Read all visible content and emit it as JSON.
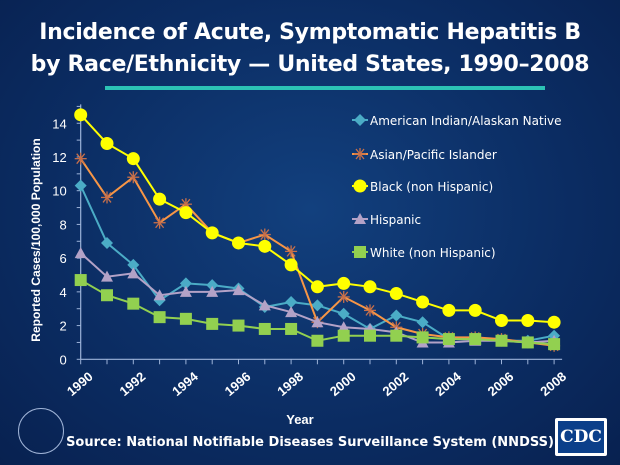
{
  "title_line1": "Incidence of Acute, Symptomatic Hepatitis B",
  "title_line2": "by Race/Ethnicity — United States, 1990–2008",
  "source": "Source: National Notifiable Diseases Surveillance System (NNDSS)",
  "logo_text": "CDC",
  "chart_data": {
    "type": "line",
    "title": "",
    "xlabel": "Year",
    "ylabel": "Reported Cases/100,000 Population",
    "x": [
      1990,
      1991,
      1992,
      1993,
      1994,
      1995,
      1996,
      1997,
      1998,
      1999,
      2000,
      2001,
      2002,
      2003,
      2004,
      2005,
      2006,
      2007,
      2008
    ],
    "xtick_labels": [
      "1990",
      "1992",
      "1994",
      "1996",
      "1998",
      "2000",
      "2002",
      "2004",
      "2006",
      "2008"
    ],
    "ytick_labels": [
      "0",
      "2",
      "4",
      "6",
      "8",
      "10",
      "12",
      "14"
    ],
    "ylim": [
      0,
      15
    ],
    "grid": false,
    "legend": "top-right",
    "series": [
      {
        "name": "American Indian/Alaskan Native",
        "color": "#4bacc6",
        "marker": "diamond",
        "values": [
          10.3,
          6.9,
          5.6,
          3.5,
          4.5,
          4.4,
          4.2,
          3.1,
          3.4,
          3.2,
          2.7,
          1.8,
          2.6,
          2.2,
          1.2,
          1.2,
          1.1,
          1.1,
          1.4
        ]
      },
      {
        "name": "Asian/Pacific Islander",
        "color": "#f79646",
        "marker": "asterisk",
        "values": [
          11.9,
          9.6,
          10.8,
          8.1,
          9.2,
          7.5,
          6.9,
          7.4,
          6.4,
          2.2,
          3.7,
          2.9,
          1.9,
          1.5,
          1.3,
          1.3,
          1.2,
          1.0,
          0.8
        ]
      },
      {
        "name": "Black (non Hispanic)",
        "color": "#ffff00",
        "marker": "circle",
        "values": [
          14.5,
          12.8,
          11.9,
          9.5,
          8.7,
          7.5,
          6.9,
          6.7,
          5.6,
          4.3,
          4.5,
          4.3,
          3.9,
          3.4,
          2.9,
          2.9,
          2.3,
          2.3,
          2.2
        ]
      },
      {
        "name": "Hispanic",
        "color": "#b3a2c7",
        "marker": "triangle",
        "values": [
          6.3,
          4.9,
          5.1,
          3.8,
          4.0,
          4.0,
          4.1,
          3.2,
          2.8,
          2.2,
          1.9,
          1.8,
          1.6,
          1.0,
          1.0,
          1.1,
          1.1,
          1.0,
          1.1
        ]
      },
      {
        "name": "White (non Hispanic)",
        "color": "#92d050",
        "marker": "square",
        "values": [
          4.7,
          3.8,
          3.3,
          2.5,
          2.4,
          2.1,
          2.0,
          1.8,
          1.8,
          1.1,
          1.4,
          1.4,
          1.4,
          1.3,
          1.2,
          1.2,
          1.1,
          1.0,
          0.9
        ]
      }
    ]
  }
}
